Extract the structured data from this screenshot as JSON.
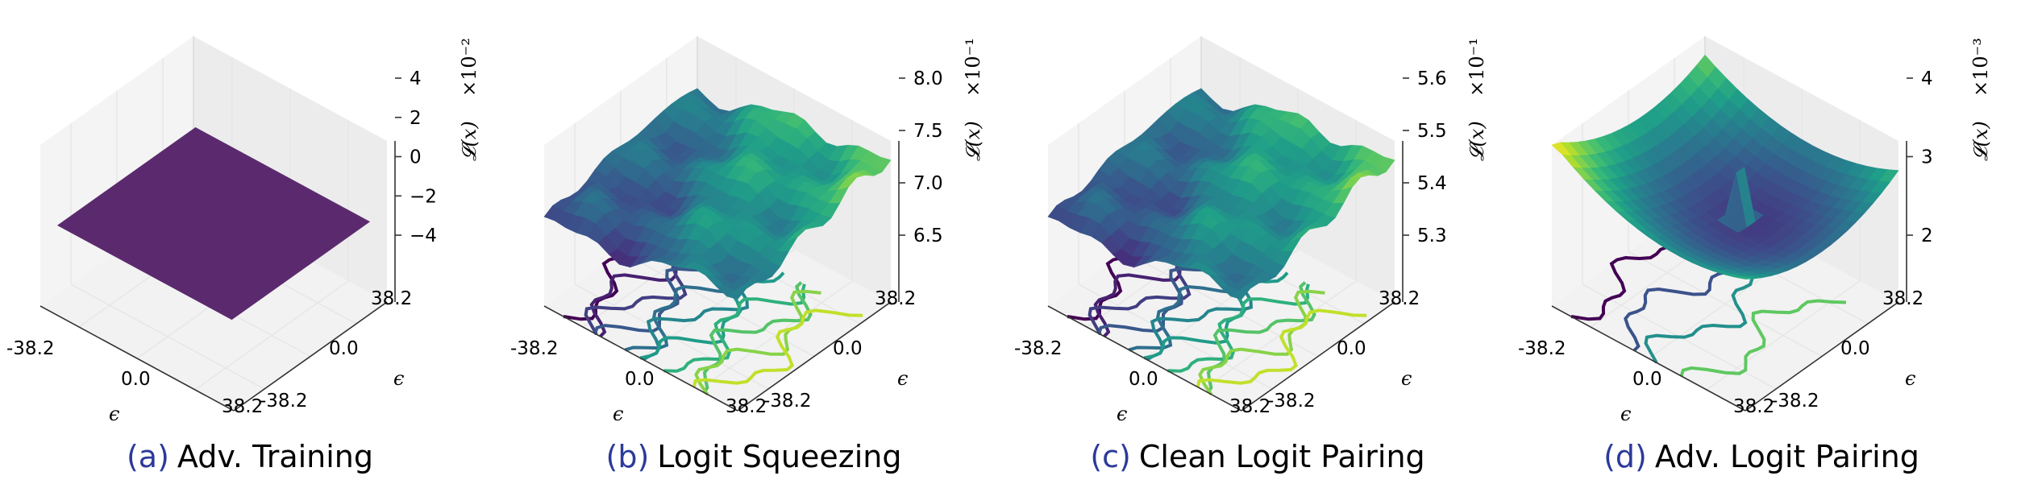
{
  "chart_data": [
    {
      "type": "surface3d",
      "panel_label": "(a)",
      "title": "Adv. Training",
      "xlabel": "ϵ",
      "ylabel": "ϵ",
      "zlabel": "𝓛(x)",
      "z_multiplier": "×10⁻²",
      "x_ticks": [
        "-38.2",
        "0.0",
        "38.2"
      ],
      "y_ticks": [
        "-38.2",
        "0.0",
        "38.2"
      ],
      "z_ticks": [
        "4",
        "2",
        "0",
        "−2",
        "−4"
      ],
      "x_range": [
        -38.2,
        38.2
      ],
      "y_range": [
        -38.2,
        38.2
      ],
      "zlim": [
        -0.05,
        0.05
      ],
      "surface": "flat",
      "surface_value": 0.0,
      "colormap": "viridis"
    },
    {
      "type": "surface3d",
      "panel_label": "(b)",
      "title": "Logit Squeezing",
      "xlabel": "ϵ",
      "ylabel": "ϵ",
      "zlabel": "𝓛(x)",
      "z_multiplier": "×10⁻¹",
      "x_ticks": [
        "-38.2",
        "0.0",
        "38.2"
      ],
      "y_ticks": [
        "-38.2",
        "0.0",
        "38.2"
      ],
      "z_ticks": [
        "8.0",
        "7.5",
        "7.0",
        "6.5"
      ],
      "x_range": [
        -38.2,
        38.2
      ],
      "y_range": [
        -38.2,
        38.2
      ],
      "zlim": [
        0.64,
        0.83
      ],
      "surface": "rugged",
      "colormap": "viridis",
      "contours": true
    },
    {
      "type": "surface3d",
      "panel_label": "(c)",
      "title": "Clean Logit Pairing",
      "xlabel": "ϵ",
      "ylabel": "ϵ",
      "zlabel": "𝓛(x)",
      "z_multiplier": "×10⁻¹",
      "x_ticks": [
        "-38.2",
        "0.0",
        "38.2"
      ],
      "y_ticks": [
        "-38.2",
        "0.0",
        "38.2"
      ],
      "z_ticks": [
        "5.6",
        "5.5",
        "5.4",
        "5.3"
      ],
      "x_range": [
        -38.2,
        38.2
      ],
      "y_range": [
        -38.2,
        38.2
      ],
      "zlim": [
        0.525,
        0.565
      ],
      "surface": "rugged",
      "colormap": "viridis",
      "contours": true
    },
    {
      "type": "surface3d",
      "panel_label": "(d)",
      "title": "Adv. Logit Pairing",
      "xlabel": "ϵ",
      "ylabel": "ϵ",
      "zlabel": "𝓛(x)",
      "z_multiplier": "×10⁻³",
      "x_ticks": [
        "-38.2",
        "0.0",
        "38.2"
      ],
      "y_ticks": [
        "-38.2",
        "0.0",
        "38.2"
      ],
      "z_ticks": [
        "4",
        "3",
        "2"
      ],
      "x_range": [
        -38.2,
        38.2
      ],
      "y_range": [
        -38.2,
        38.2
      ],
      "zlim": [
        0.001,
        0.005
      ],
      "surface": "bowl_with_spike",
      "colormap": "viridis",
      "contours": true
    }
  ]
}
